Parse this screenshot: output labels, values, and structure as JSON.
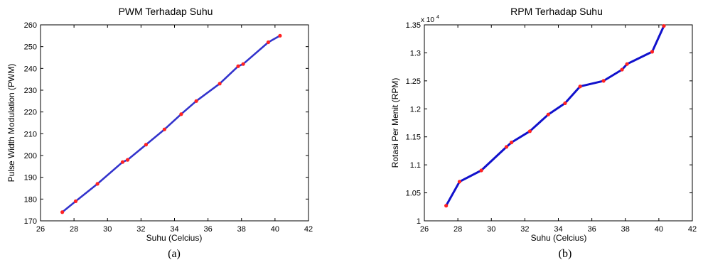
{
  "chart_data": [
    {
      "type": "line",
      "title": "PWM Terhadap Suhu",
      "xlabel": "Suhu (Celcius)",
      "ylabel": "Pulse Width Modulation (PWM)",
      "xlim": [
        26,
        42
      ],
      "ylim": [
        170,
        260
      ],
      "xticks": [
        "26",
        "28",
        "30",
        "32",
        "34",
        "36",
        "38",
        "40",
        "42"
      ],
      "yticks": [
        "170",
        "180",
        "190",
        "200",
        "210",
        "220",
        "230",
        "240",
        "250",
        "260"
      ],
      "grid": false,
      "line_color": "#3333cc",
      "marker_color": "#ff2222",
      "series": [
        {
          "x": [
            27.3,
            28.1,
            29.4,
            30.9,
            31.2,
            32.3,
            33.4,
            34.4,
            35.3,
            36.7,
            37.8,
            38.1,
            39.6,
            40.3
          ],
          "y": [
            174,
            179,
            187,
            197,
            198,
            205,
            212,
            219,
            225,
            233,
            241,
            242,
            252,
            255
          ]
        }
      ],
      "caption": "(a)"
    },
    {
      "type": "line",
      "title": "RPM Terhadap Suhu",
      "xlabel": "Suhu (Celcius)",
      "ylabel": "Rotasi Per Menit (RPM)",
      "exponent_label": "x 10",
      "exponent_power": "4",
      "xlim": [
        26,
        42
      ],
      "ylim": [
        1.0,
        1.35
      ],
      "xticks": [
        "26",
        "28",
        "30",
        "32",
        "34",
        "36",
        "38",
        "40",
        "42"
      ],
      "yticks": [
        "1",
        "1.05",
        "1.1",
        "1.15",
        "1.2",
        "1.25",
        "1.3",
        "1.35"
      ],
      "grid": false,
      "line_color": "#1111cc",
      "marker_color": "#ff2222",
      "series": [
        {
          "x": [
            27.3,
            28.1,
            29.4,
            30.9,
            31.2,
            32.3,
            33.4,
            34.4,
            35.3,
            36.7,
            37.8,
            38.1,
            39.6,
            40.3
          ],
          "y": [
            1.027,
            1.07,
            1.09,
            1.132,
            1.14,
            1.16,
            1.19,
            1.21,
            1.24,
            1.25,
            1.27,
            1.28,
            1.302,
            1.348
          ]
        }
      ],
      "caption": "(b)"
    }
  ]
}
